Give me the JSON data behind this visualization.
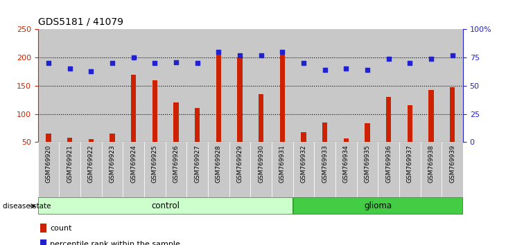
{
  "title": "GDS5181 / 41079",
  "samples": [
    "GSM769920",
    "GSM769921",
    "GSM769922",
    "GSM769923",
    "GSM769924",
    "GSM769925",
    "GSM769926",
    "GSM769927",
    "GSM769928",
    "GSM769929",
    "GSM769930",
    "GSM769931",
    "GSM769932",
    "GSM769933",
    "GSM769934",
    "GSM769935",
    "GSM769936",
    "GSM769937",
    "GSM769938",
    "GSM769939"
  ],
  "count_values": [
    65,
    58,
    55,
    65,
    170,
    160,
    120,
    110,
    210,
    200,
    135,
    210,
    68,
    85,
    57,
    83,
    130,
    115,
    143,
    147
  ],
  "percentile_values": [
    70,
    65,
    63,
    70,
    75,
    70,
    71,
    70,
    80,
    77,
    77,
    80,
    70,
    64,
    65,
    64,
    74,
    70,
    74,
    77
  ],
  "ylim_left": [
    50,
    250
  ],
  "ylim_right": [
    0,
    100
  ],
  "yticks_left": [
    50,
    100,
    150,
    200,
    250
  ],
  "yticks_right": [
    0,
    25,
    50,
    75,
    100
  ],
  "ytick_labels_right": [
    "0",
    "25",
    "50",
    "75",
    "100%"
  ],
  "bar_color": "#cc2200",
  "dot_color": "#2222cc",
  "control_count": 12,
  "glioma_count": 8,
  "control_color": "#ccffcc",
  "glioma_color": "#44cc44",
  "control_label": "control",
  "glioma_label": "glioma",
  "disease_state_label": "disease state",
  "legend_count_label": "count",
  "legend_percentile_label": "percentile rank within the sample",
  "bar_bottom": 50,
  "title_fontsize": 10,
  "tick_label_fontsize": 6.5,
  "axis_tick_fontsize": 8
}
